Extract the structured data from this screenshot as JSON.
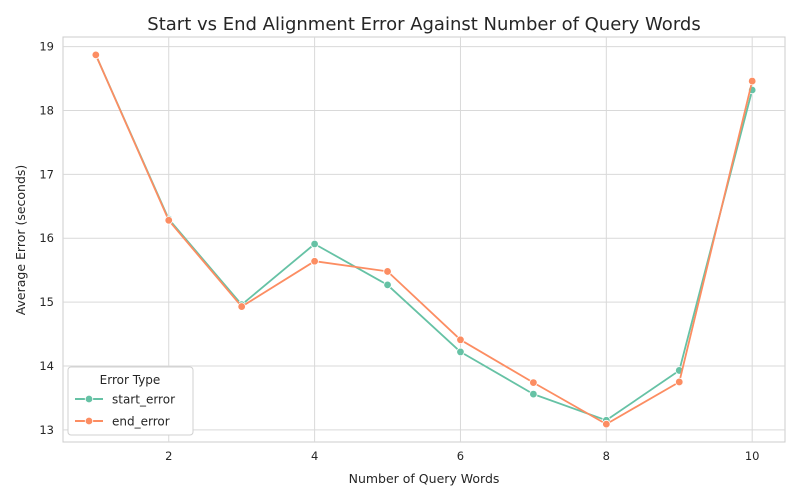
{
  "chart_data": {
    "type": "line",
    "title": "Start vs End Alignment Error Against Number of Query Words",
    "xlabel": "Number of Query Words",
    "ylabel": "Average Error (seconds)",
    "x": [
      1,
      2,
      3,
      4,
      5,
      6,
      7,
      8,
      9,
      10
    ],
    "xticks": [
      2,
      4,
      6,
      8,
      10
    ],
    "yticks": [
      13,
      14,
      15,
      16,
      17,
      18,
      19
    ],
    "xlim": [
      0.55,
      10.45
    ],
    "ylim": [
      12.81,
      19.15
    ],
    "grid": true,
    "legend": {
      "title": "Error Type",
      "placement": "lower-left"
    },
    "series": [
      {
        "name": "start_error",
        "color": "#66c2a5",
        "values": [
          18.87,
          16.3,
          14.96,
          15.91,
          15.27,
          14.22,
          13.56,
          13.15,
          13.93,
          18.32
        ]
      },
      {
        "name": "end_error",
        "color": "#fc8d62",
        "values": [
          18.87,
          16.28,
          14.93,
          15.64,
          15.48,
          14.41,
          13.74,
          13.09,
          13.75,
          18.46
        ]
      }
    ]
  }
}
